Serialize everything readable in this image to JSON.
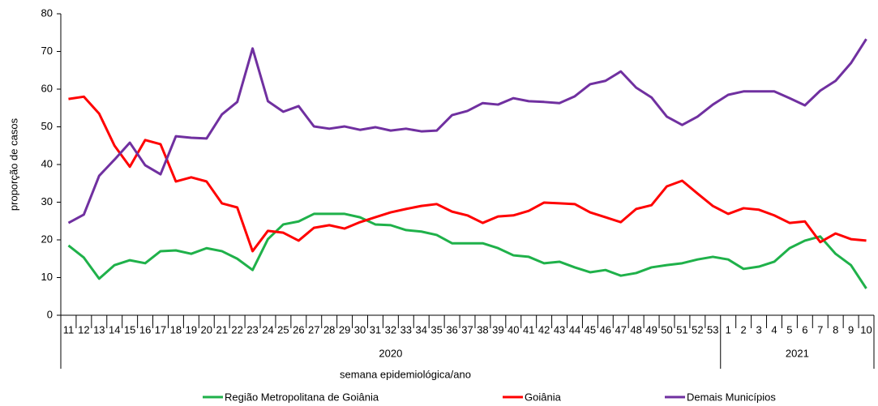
{
  "chart_data": {
    "type": "line",
    "x_label": "semana epidemiológica/ano",
    "y_label": "proporção de casos",
    "category_groups": [
      {
        "label": "2020",
        "categories": [
          "11",
          "12",
          "13",
          "14",
          "15",
          "16",
          "17",
          "18",
          "19",
          "20",
          "21",
          "22",
          "23",
          "24",
          "25",
          "26",
          "27",
          "28",
          "29",
          "30",
          "31",
          "32",
          "33",
          "34",
          "35",
          "36",
          "37",
          "38",
          "39",
          "40",
          "41",
          "42",
          "43",
          "44",
          "45",
          "46",
          "47",
          "48",
          "49",
          "50",
          "51",
          "52",
          "53"
        ]
      },
      {
        "label": "2021",
        "categories": [
          "1",
          "2",
          "3",
          "4",
          "5",
          "6",
          "7",
          "8",
          "9",
          "10"
        ]
      }
    ],
    "series": [
      {
        "name": "Região Metropolitana de Goiânia",
        "color": "#1fb14a",
        "values": [
          18.5,
          15.3,
          9.7,
          13.3,
          14.6,
          13.8,
          17,
          17.2,
          16.3,
          17.8,
          17,
          15,
          12,
          20.2,
          24.1,
          24.9,
          26.9,
          26.9,
          26.9,
          26,
          24.1,
          23.9,
          22.6,
          22.2,
          21.3,
          19.1,
          19.1,
          19.1,
          17.8,
          15.9,
          15.5,
          13.8,
          14.2,
          12.7,
          11.4,
          12,
          10.5,
          11.2,
          12.7,
          13.3,
          13.8,
          14.8,
          15.5,
          14.8,
          12.3,
          12.9,
          14.2,
          17.8,
          19.8,
          20.9,
          16.3,
          13.3,
          7.1
        ]
      },
      {
        "name": "Goiânia",
        "color": "#ff0000",
        "values": [
          57.4,
          58,
          53.5,
          45,
          39.4,
          46.5,
          45.4,
          35.5,
          36.6,
          35.5,
          29.7,
          28.6,
          17,
          22.4,
          21.9,
          19.8,
          23.2,
          23.9,
          23,
          24.7,
          26,
          27.3,
          28.2,
          29,
          29.5,
          27.5,
          26.5,
          24.5,
          26.2,
          26.5,
          27.7,
          29.9,
          29.7,
          29.5,
          27.3,
          26,
          24.7,
          28.2,
          29.2,
          34.2,
          35.7,
          32.3,
          29,
          26.9,
          28.4,
          28,
          26.5,
          24.5,
          24.9,
          19.4,
          21.7,
          20.2,
          19.8
        ]
      },
      {
        "name": "Demais Municípios",
        "color": "#7030a0",
        "values": [
          24.5,
          26.7,
          37,
          41.3,
          45.8,
          39.8,
          37.4,
          47.5,
          47.1,
          46.9,
          53.3,
          56.6,
          70.8,
          56.8,
          54,
          55.5,
          50.1,
          49.5,
          50.1,
          49.2,
          49.9,
          49,
          49.5,
          48.8,
          49,
          53.1,
          54.2,
          56.3,
          55.9,
          57.6,
          56.8,
          56.6,
          56.3,
          58.1,
          61.3,
          62.2,
          64.7,
          60.4,
          57.8,
          52.7,
          50.5,
          52.7,
          55.9,
          58.5,
          59.4,
          59.4,
          59.4,
          57.6,
          55.7,
          59.6,
          62.2,
          66.9,
          73.3
        ]
      }
    ],
    "ylim": [
      0,
      80
    ],
    "yticks": [
      0,
      10,
      20,
      30,
      40,
      50,
      60,
      70,
      80
    ],
    "grid": false,
    "legend": "bottom"
  }
}
